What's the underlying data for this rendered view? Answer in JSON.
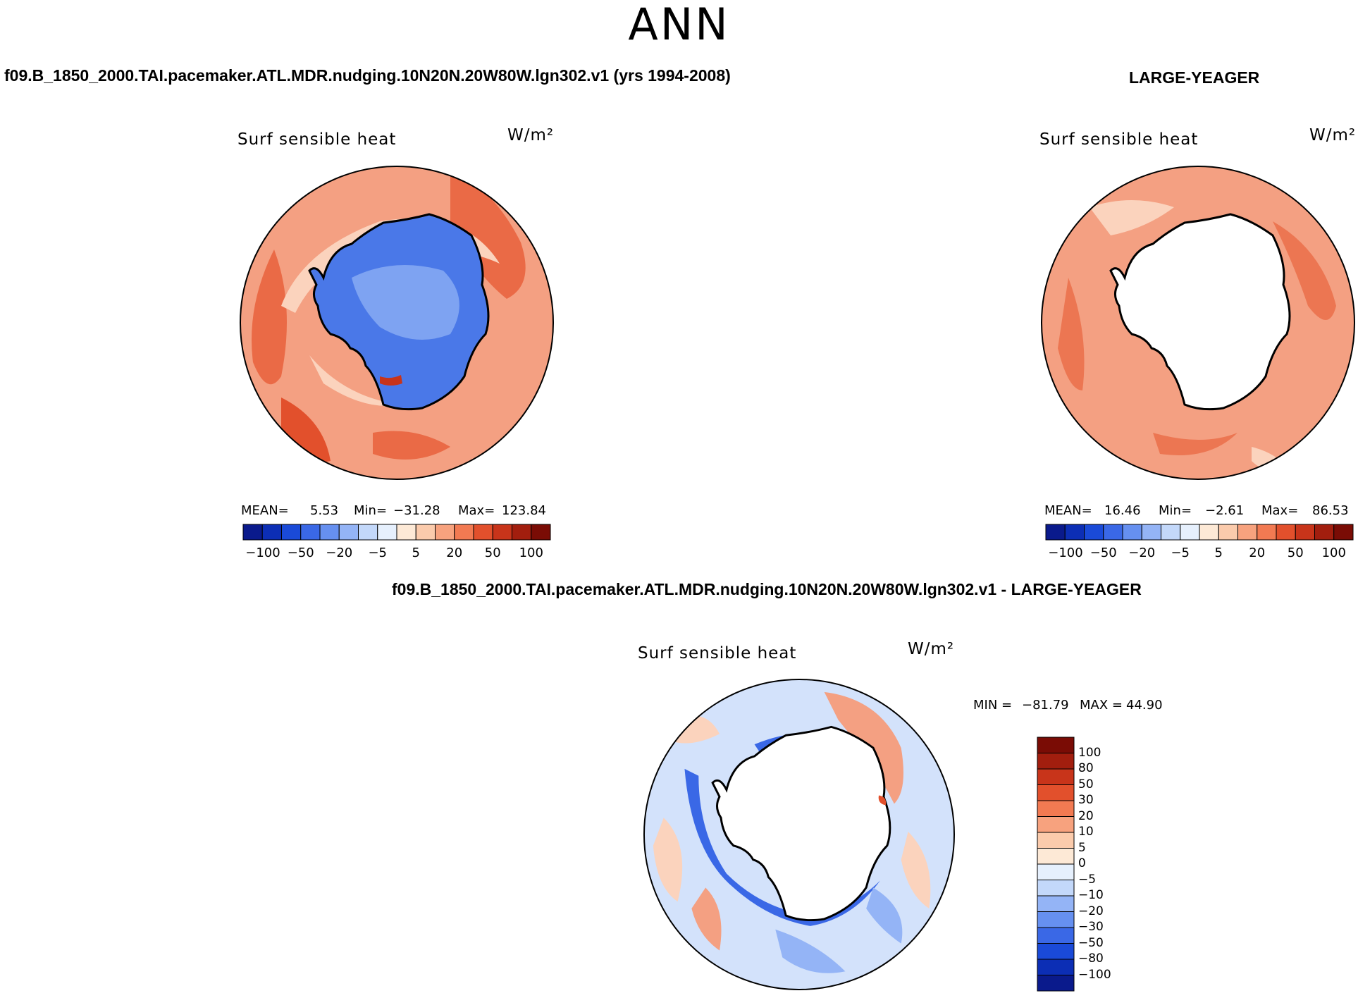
{
  "header": {
    "title": "ANN"
  },
  "panel_left": {
    "case_title": "f09.B_1850_2000.TAI.pacemaker.ATL.MDR.nudging.10N20N.20W80W.lgn302.v1 (yrs 1994-2008)",
    "plot_title": "Surf sensible heat",
    "units": "W/m²",
    "mean_label": "MEAN=",
    "mean_value": "5.53",
    "min_label": "Min=",
    "min_value": "−31.28",
    "max_label": "Max=",
    "max_value": "123.84"
  },
  "panel_right": {
    "case_title": "LARGE-YEAGER",
    "plot_title": "Surf sensible heat",
    "units": "W/m²",
    "mean_label": "MEAN=",
    "mean_value": "16.46",
    "min_label": "Min=",
    "min_value": "−2.61",
    "max_label": "Max=",
    "max_value": "86.53"
  },
  "panel_diff": {
    "case_title": "f09.B_1850_2000.TAI.pacemaker.ATL.MDR.nudging.10N20N.20W80W.lgn302.v1 - LARGE-YEAGER",
    "plot_title": "Surf sensible heat",
    "units": "W/m²",
    "min_label": "MIN =",
    "min_value": "−81.79",
    "max_label": "MAX =",
    "max_value": "44.90"
  },
  "colorbar_horizontal": {
    "tick_labels": [
      "−100",
      "−50",
      "−20",
      "−5",
      "5",
      "20",
      "50",
      "100"
    ],
    "colors": [
      "#0a1a8c",
      "#0c2eb5",
      "#1a4ad8",
      "#3a68e6",
      "#6690f0",
      "#94b4f6",
      "#c3d8fa",
      "#e6f0fd",
      "#fde9d6",
      "#fbcbac",
      "#f7a27e",
      "#f27a52",
      "#e2502c",
      "#c8341a",
      "#a21e0e",
      "#7a0c05"
    ]
  },
  "colorbar_vertical": {
    "tick_labels": [
      "100",
      "80",
      "50",
      "30",
      "20",
      "10",
      "5",
      "0",
      "−5",
      "−10",
      "−20",
      "−30",
      "−50",
      "−80",
      "−100"
    ],
    "colors": [
      "#7a0c05",
      "#a21e0e",
      "#c8341a",
      "#e2502c",
      "#f27a52",
      "#f7a27e",
      "#fbcbac",
      "#fde9d6",
      "#e6f0fd",
      "#c3d8fa",
      "#94b4f6",
      "#6690f0",
      "#3a68e6",
      "#1a4ad8",
      "#0c2eb5",
      "#0a1a8c"
    ]
  },
  "maps": {
    "left": {
      "ocean_color": "#f4a082",
      "land_color": "#4a78e8",
      "land_light": "#7ea3f2",
      "accent_colors": [
        "#ea6a46",
        "#fbd3bd",
        "#c8341a"
      ]
    },
    "right": {
      "ocean_color": "#f4a082",
      "land_color": "#ffffff",
      "accent_colors": [
        "#ec7652",
        "#fbd3bd"
      ]
    },
    "diff": {
      "ocean_color": "#d3e2fb",
      "land_color": "#ffffff",
      "accent_colors": [
        "#fbd3bd",
        "#f4a082",
        "#3a68e6",
        "#94b4f6"
      ]
    }
  }
}
